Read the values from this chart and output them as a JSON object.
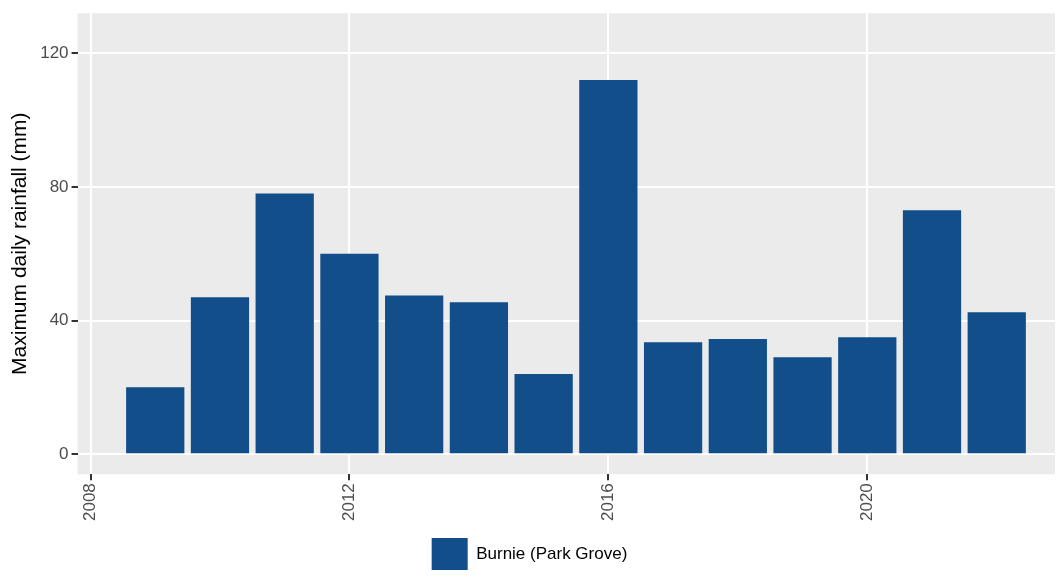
{
  "chart_data": {
    "type": "bar",
    "ylabel": "Maximum daily rainfall (mm)",
    "x": [
      2009,
      2010,
      2011,
      2012,
      2013,
      2014,
      2015,
      2016,
      2017,
      2018,
      2019,
      2020,
      2021,
      2022
    ],
    "series": [
      {
        "name": "Burnie (Park Grove)",
        "color": "#114e8a",
        "values": [
          20,
          47,
          78,
          60,
          47.5,
          45.5,
          24,
          112,
          33.5,
          34.5,
          29,
          35,
          73,
          42.5
        ]
      }
    ],
    "xlim": [
      2007.8,
      2022.9
    ],
    "xticks": [
      2008,
      2012,
      2016,
      2020
    ],
    "ylim": [
      -6,
      132
    ],
    "yticks": [
      0,
      40,
      80,
      120
    ],
    "grid": true,
    "legend": "bottom"
  }
}
